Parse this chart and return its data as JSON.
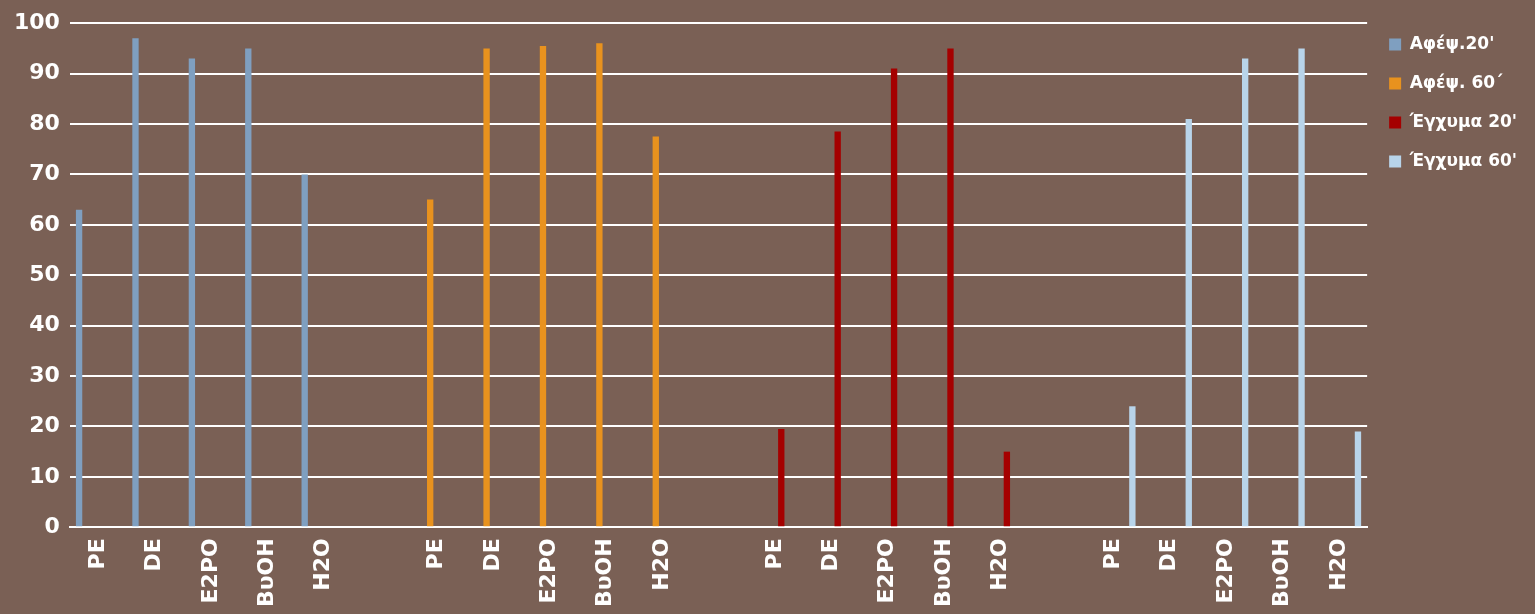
{
  "chart_data": {
    "type": "bar",
    "categories": [
      "PE",
      "DE",
      "E2PO",
      "BυOH",
      "H2O",
      null,
      "PE",
      "DE",
      "E2PO",
      "BυOH",
      "H2O",
      null,
      "PE",
      "DE",
      "E2PO",
      "BυOH",
      "H2O",
      null,
      "PE",
      "DE",
      "E2PO",
      "BυOH",
      "H2O"
    ],
    "series": [
      {
        "name": "Αφέψ.20'",
        "color": "#7f9fc0",
        "values": [
          63,
          97,
          93,
          95,
          70,
          null,
          null,
          null,
          null,
          null,
          null,
          null,
          null,
          null,
          null,
          null,
          null,
          null,
          null,
          null,
          null,
          null,
          null
        ]
      },
      {
        "name": "Αφέψ. 60΄",
        "color": "#e8921e",
        "values": [
          null,
          null,
          null,
          null,
          null,
          null,
          65,
          95,
          95.5,
          96,
          77.5,
          null,
          null,
          null,
          null,
          null,
          null,
          null,
          null,
          null,
          null,
          null,
          null
        ]
      },
      {
        "name": "Έγχυμα 20'",
        "color": "#a50000",
        "values": [
          null,
          null,
          null,
          null,
          null,
          null,
          null,
          null,
          null,
          null,
          null,
          null,
          19.5,
          78.5,
          91,
          95,
          15,
          null,
          null,
          null,
          null,
          null,
          null
        ]
      },
      {
        "name": "Έγχυμα 60'",
        "color": "#b8d4ea",
        "values": [
          null,
          null,
          null,
          null,
          null,
          null,
          null,
          null,
          null,
          null,
          null,
          null,
          null,
          null,
          null,
          null,
          null,
          null,
          24,
          81,
          93,
          95,
          19
        ]
      }
    ],
    "ylim": [
      0,
      100
    ],
    "yticks": [
      0,
      10,
      20,
      30,
      40,
      50,
      60,
      70,
      80,
      90,
      100
    ],
    "grid": "y",
    "legend": "top right"
  }
}
